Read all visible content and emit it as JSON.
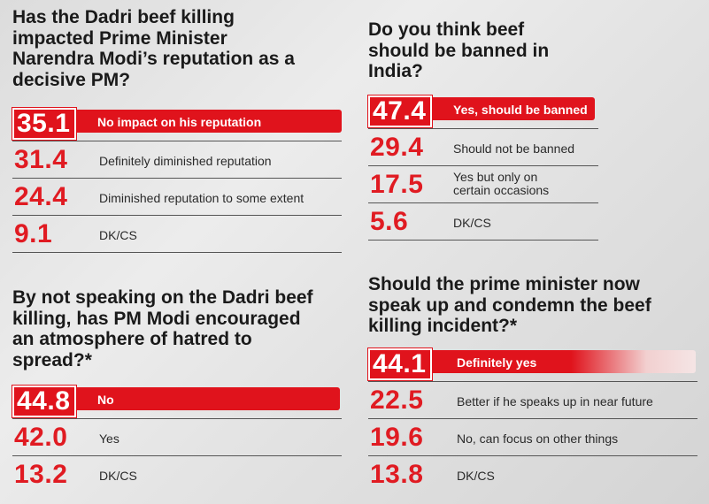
{
  "chart_data": [
    {
      "type": "table",
      "title": "Has the Dadri beef killing impacted Prime Minister Narendra Modi’s reputation as a decisive PM?",
      "rows": [
        {
          "value": 35.1,
          "value_text": "35.1",
          "label": "No impact on his reputation",
          "highlight": true
        },
        {
          "value": 31.4,
          "value_text": "31.4",
          "label": "Definitely diminished reputation",
          "highlight": false
        },
        {
          "value": 24.4,
          "value_text": "24.4",
          "label": "Diminished reputation to some extent",
          "highlight": false
        },
        {
          "value": 9.1,
          "value_text": "9.1",
          "label": "DK/CS",
          "highlight": false
        }
      ]
    },
    {
      "type": "table",
      "title": "By not speaking on the Dadri beef killing, has PM Modi encouraged an atmosphere of hatred to spread?*",
      "rows": [
        {
          "value": 44.8,
          "value_text": "44.8",
          "label": "No",
          "highlight": true
        },
        {
          "value": 42.0,
          "value_text": "42.0",
          "label": "Yes",
          "highlight": false
        },
        {
          "value": 13.2,
          "value_text": "13.2",
          "label": "DK/CS",
          "highlight": false
        }
      ]
    },
    {
      "type": "table",
      "title": "Do you think beef should be banned in India?",
      "rows": [
        {
          "value": 47.4,
          "value_text": "47.4",
          "label": "Yes, should be banned",
          "highlight": true
        },
        {
          "value": 29.4,
          "value_text": "29.4",
          "label": "Should not be banned",
          "highlight": false
        },
        {
          "value": 17.5,
          "value_text": "17.5",
          "label": "Yes but only on certain occasions",
          "label_lines": [
            "Yes but only on",
            "certain occasions"
          ],
          "highlight": false
        },
        {
          "value": 5.6,
          "value_text": "5.6",
          "label": "DK/CS",
          "highlight": false
        }
      ]
    },
    {
      "type": "table",
      "title": "Should the prime minister now speak up and condemn the beef killing incident?*",
      "rows": [
        {
          "value": 44.1,
          "value_text": "44.1",
          "label": "Definitely yes",
          "highlight": true
        },
        {
          "value": 22.5,
          "value_text": "22.5",
          "label": "Better if he speaks up in near future",
          "highlight": false
        },
        {
          "value": 19.6,
          "value_text": "19.6",
          "label": "No, can focus on other things",
          "highlight": false
        },
        {
          "value": 13.8,
          "value_text": "13.8",
          "label": "DK/CS",
          "highlight": false
        }
      ]
    }
  ],
  "colors": {
    "accent": "#e0131c",
    "value_text": "#e01b22",
    "label_text": "#2a2a2a",
    "question_text": "#1a1a1a"
  }
}
